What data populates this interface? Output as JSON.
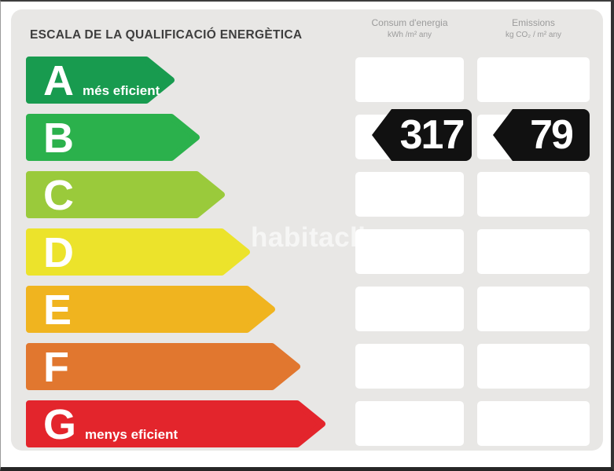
{
  "title": "ESCALA DE LA QUALIFICACIÓ ENERGÈTICA",
  "columns": [
    {
      "label": "Consum d'energia",
      "unit": "kWh /m² any"
    },
    {
      "label": "Emissions",
      "unit": "kg CO₂ / m² any"
    }
  ],
  "ratings": [
    {
      "grade": "A",
      "note": "més eficient",
      "color": "#189b4f",
      "arrow_width": 189
    },
    {
      "grade": "B",
      "note": "",
      "color": "#2bb14c",
      "arrow_width": 221
    },
    {
      "grade": "C",
      "note": "",
      "color": "#9aca3b",
      "arrow_width": 253
    },
    {
      "grade": "D",
      "note": "",
      "color": "#ece32b",
      "arrow_width": 285
    },
    {
      "grade": "E",
      "note": "",
      "color": "#f0b41f",
      "arrow_width": 317
    },
    {
      "grade": "F",
      "note": "",
      "color": "#e1772f",
      "arrow_width": 349
    },
    {
      "grade": "G",
      "note": "menys eficient",
      "color": "#e3252c",
      "arrow_width": 381
    }
  ],
  "values": {
    "consumption": "317",
    "emissions": "79"
  },
  "watermark": "habitaclia",
  "colors": {
    "panel_background": "#e8e7e5",
    "badge_background": "#111111",
    "badge_text": "#ffffff",
    "title_text": "#3e3e3e",
    "header_text": "#9b9b9b"
  },
  "chart_data": {
    "type": "bar",
    "title": "ESCALA DE LA QUALIFICACIÓ ENERGÈTICA",
    "categories": [
      "A",
      "B",
      "C",
      "D",
      "E",
      "F",
      "G"
    ],
    "category_colors": [
      "#189b4f",
      "#2bb14c",
      "#9aca3b",
      "#ece32b",
      "#f0b41f",
      "#e1772f",
      "#e3252c"
    ],
    "category_notes": {
      "A": "més eficient",
      "G": "menys eficient"
    },
    "series": [
      {
        "name": "Consum d'energia (kWh /m² any)",
        "rated_grade": "B",
        "value": 317
      },
      {
        "name": "Emissions (kg CO₂ / m² any)",
        "rated_grade": "B",
        "value": 79
      }
    ],
    "legend_position": "top",
    "grid": false,
    "orientation": "horizontal"
  }
}
